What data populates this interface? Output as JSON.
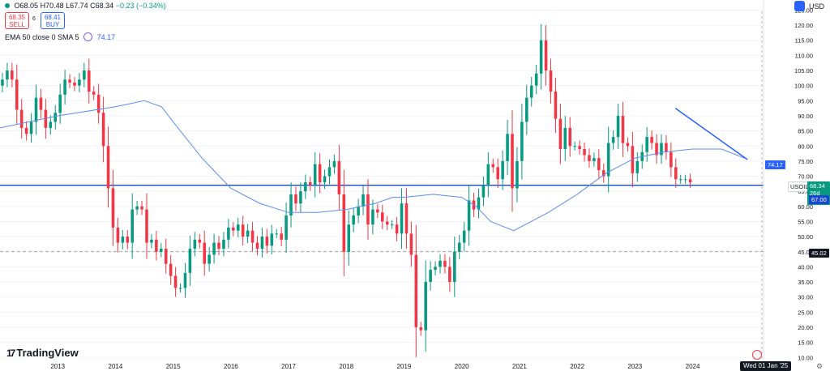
{
  "header": {
    "ohlc_text": "O68.05 H70.48 L67.74 C68.34 −0.23 (−0.34%)",
    "ohlc_parts": [
      "O68.05",
      "H70.48",
      "L67.74",
      "C68.34"
    ],
    "change": "−0.23 (−0.34%)",
    "sell_price": "68.35",
    "sell_label": "SELL",
    "spread": "6",
    "buy_price": "68.41",
    "buy_label": "BUY",
    "indicator_name": "EMA 50 close 0 SMA 5",
    "indicator_value": "74.17",
    "currency": "USD"
  },
  "labels": {
    "last_price": "68.34",
    "symbol_tag": "USOIL",
    "countdown": "26d 4h",
    "ema_value": "74.17",
    "hline_high": "67.00",
    "hline_low": "45.02",
    "date_badge": "Wed 01 Jan '25",
    "brand": "TradingView"
  },
  "colors": {
    "up": "#089981",
    "down": "#f23645",
    "ema": "#5b8def",
    "trend": "#2962ff",
    "hline": "#1848cc"
  },
  "chart_data": {
    "type": "candlestick",
    "timeframe": "monthly",
    "ylim": [
      9,
      127
    ],
    "y_ticks": [
      10,
      15,
      20,
      25,
      30,
      35,
      40,
      45,
      50,
      55,
      60,
      65,
      70,
      75,
      80,
      85,
      90,
      95,
      100,
      105,
      110,
      115,
      120,
      125
    ],
    "x_ticks": [
      {
        "label": "2013",
        "t": 2013.0
      },
      {
        "label": "2014",
        "t": 2014.0
      },
      {
        "label": "2015",
        "t": 2015.0
      },
      {
        "label": "2016",
        "t": 2016.0
      },
      {
        "label": "2017",
        "t": 2017.0
      },
      {
        "label": "2018",
        "t": 2018.0
      },
      {
        "label": "2019",
        "t": 2019.0
      },
      {
        "label": "2020",
        "t": 2020.0
      },
      {
        "label": "2021",
        "t": 2021.0
      },
      {
        "label": "2022",
        "t": 2022.0
      },
      {
        "label": "2023",
        "t": 2023.0
      },
      {
        "label": "2024",
        "t": 2024.0
      }
    ],
    "x_start": 2012.0,
    "closes": [
      102,
      105,
      102,
      92,
      86,
      84,
      88,
      96,
      92,
      86,
      88,
      91,
      97,
      102,
      101,
      100,
      102,
      105,
      98,
      97,
      91,
      80,
      66,
      53,
      48,
      50,
      48,
      59,
      60,
      59,
      48,
      49,
      45,
      46,
      41,
      37,
      33,
      33,
      38,
      46,
      49,
      48,
      41,
      44,
      48,
      46,
      49,
      53,
      52,
      54,
      50,
      52,
      48,
      46,
      50,
      47,
      51,
      51,
      49,
      57,
      64,
      61,
      65,
      68,
      67,
      74,
      68,
      70,
      73,
      75,
      64,
      45,
      54,
      57,
      60,
      64,
      54,
      59,
      58,
      55,
      54,
      54,
      51,
      61,
      51,
      44,
      20,
      19,
      35,
      39,
      40,
      42,
      40,
      35,
      45,
      48,
      52,
      62,
      59,
      63,
      67,
      74,
      73,
      69,
      75,
      84,
      66,
      75,
      88,
      96,
      100,
      104,
      115,
      105,
      98,
      89,
      79,
      86,
      80,
      80,
      79,
      77,
      75,
      76,
      72,
      70,
      81,
      83,
      90,
      81,
      80,
      71,
      75,
      78,
      83,
      81,
      77,
      81,
      78,
      73,
      69,
      69,
      69,
      68
    ],
    "series": [
      {
        "name": "EMA 50 close 0 SMA 5",
        "x": [
          2012.0,
          2013.0,
          2014.0,
          2014.5,
          2014.8,
          2015.0,
          2015.5,
          2016.0,
          2016.5,
          2017.0,
          2017.5,
          2018.0,
          2018.5,
          2018.8,
          2019.0,
          2019.5,
          2020.0,
          2020.25,
          2020.5,
          2020.9,
          2021.0,
          2021.5,
          2022.0,
          2022.5,
          2023.0,
          2023.5,
          2024.0,
          2024.5,
          2024.9
        ],
        "y": [
          86,
          90,
          93,
          95,
          93,
          88,
          76,
          66,
          61,
          58,
          58,
          59,
          61,
          63,
          63,
          64,
          63,
          60,
          55,
          52,
          53,
          58,
          64,
          71,
          76,
          78,
          79,
          79,
          76
        ]
      }
    ],
    "trendline": {
      "x": [
        2023.7,
        2024.95
      ],
      "y": [
        92.5,
        75.5
      ]
    },
    "hlines": [
      {
        "label": "67.00",
        "y": 67.0
      },
      {
        "label": "45.02",
        "y": 45.02
      }
    ]
  }
}
